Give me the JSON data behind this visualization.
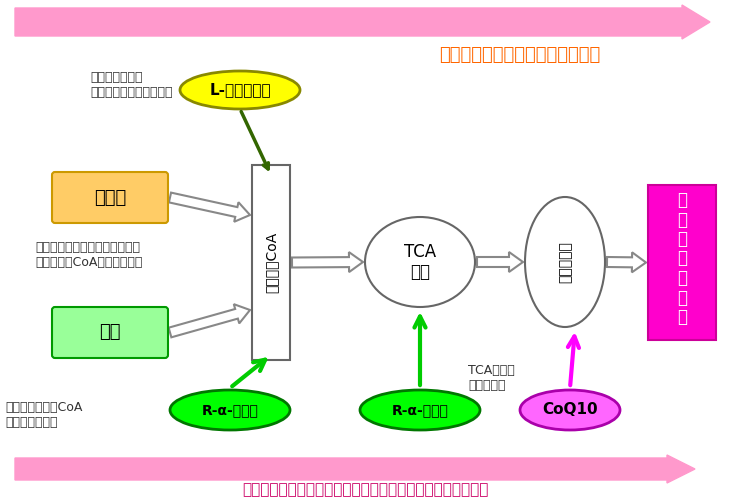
{
  "bg_color": "#ffffff",
  "top_arrow_color": "#ff99cc",
  "bottom_arrow_color": "#ff99cc",
  "top_right_text": "エネルギー産生の反応は酸化反応",
  "top_right_text_color": "#ff6600",
  "bottom_text": "ミトコンドリア内で還元体に変換され抗酸化物質として働く",
  "bottom_text_color": "#cc0066",
  "l_carnitine_text": "L-カルニチン",
  "l_carnitine_bg": "#ffff00",
  "l_carnitine_border": "#999900",
  "lipid_text": "脂　質",
  "lipid_bg": "#ffcc66",
  "lipid_border": "#cc9900",
  "sugar_text": "糖質",
  "sugar_bg": "#99ff99",
  "sugar_border": "#009900",
  "acetyl_coa_text": "アセチルCoA",
  "acetyl_coa_bg": "#ffffff",
  "acetyl_coa_border": "#666666",
  "tca_text": "TCA\n回路",
  "tca_bg": "#ffffff",
  "tca_border": "#666666",
  "electron_text": "電子伝達系",
  "electron_bg": "#ffffff",
  "electron_border": "#666666",
  "energy_text": "エネルギー産生",
  "energy_bg": "#ff00cc",
  "energy_border": "#cc0099",
  "energy_text_color": "#ffffff",
  "rlipoic1_text": "R-α-リポ酸",
  "rlipoic1_bg": "#00ff00",
  "rlipoic1_border": "#009900",
  "rlipoic2_text": "R-α-リポ酸",
  "rlipoic2_bg": "#00ff00",
  "rlipoic2_border": "#009900",
  "coq10_text": "CoQ10",
  "coq10_bg": "#ff66ff",
  "coq10_border": "#cc00cc",
  "annotation1": "脂肪酸と結合し\nミトコンドリア膜を通過",
  "annotation2": "脂質と糖質はミトコンドリア内\nでアセチルCoAに変換される",
  "annotation3": "糖質のアセチルCoA\nへの変換に関与",
  "annotation4": "TCA回路の\n回転に関与"
}
